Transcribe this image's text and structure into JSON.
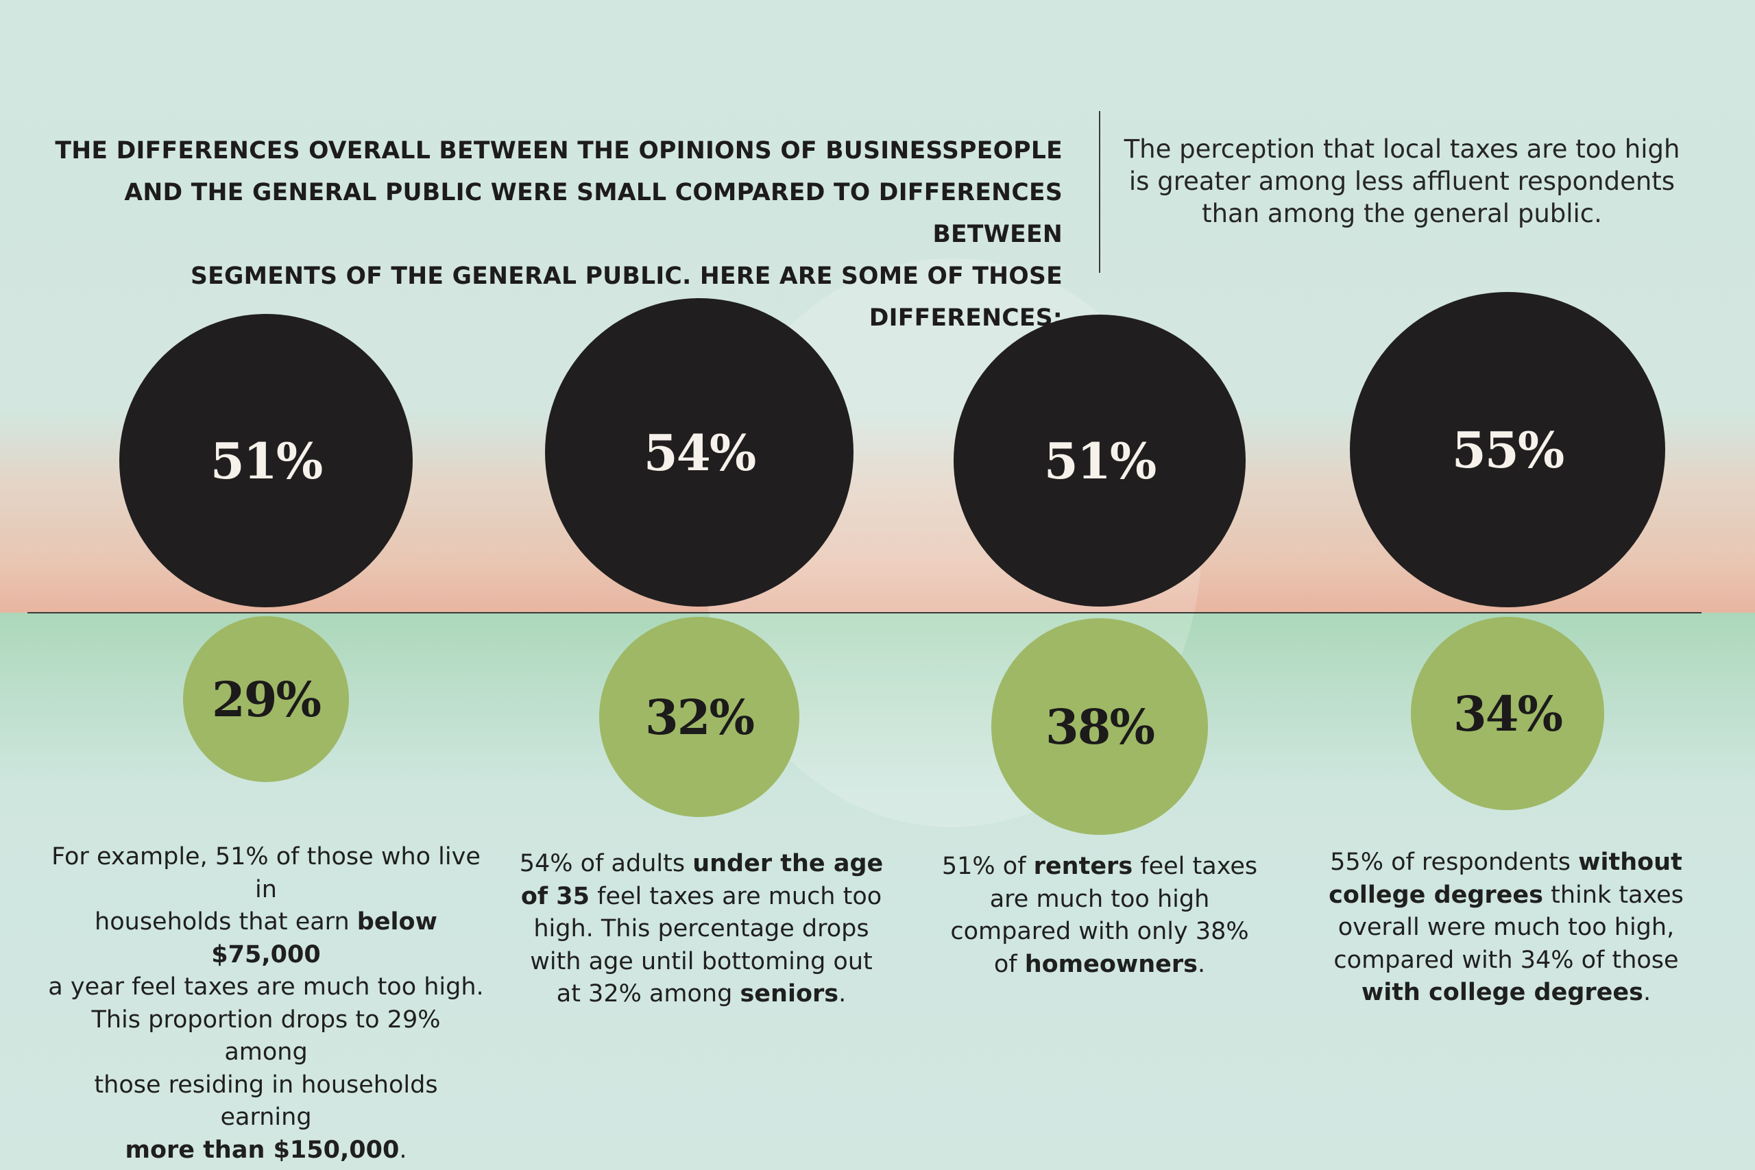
{
  "headline": {
    "lines": [
      "THE DIFFERENCES OVERALL BETWEEN THE OPINIONS OF BUSINESSPEOPLE",
      "AND THE GENERAL PUBLIC WERE SMALL COMPARED TO DIFFERENCES BETWEEN",
      "SEGMENTS OF THE GENERAL PUBLIC. HERE ARE SOME OF THOSE DIFFERENCES:"
    ]
  },
  "intro": {
    "lines": [
      "The perception that local taxes are too high",
      "is greater among less affluent respondents",
      "than among the general public."
    ]
  },
  "colors": {
    "upper_dot": "#211e1f",
    "lower_dot": "#9eb866",
    "upper_text": "#f6f1ea",
    "lower_text": "#1c1a1a"
  },
  "chart_data": {
    "type": "bubble",
    "unit": "%",
    "groups": [
      {
        "upper": {
          "value": 51,
          "label": "51%"
        },
        "lower": {
          "value": 29,
          "label": "29%"
        },
        "caption": [
          [
            {
              "t": "For example, 51% of those who live in"
            }
          ],
          [
            {
              "t": "households that earn "
            },
            {
              "t": "below $75,000",
              "b": true
            }
          ],
          [
            {
              "t": "a year feel taxes are much too high."
            }
          ],
          [
            {
              "t": "This proportion drops to 29% among"
            }
          ],
          [
            {
              "t": "those residing in households earning"
            }
          ],
          [
            {
              "t": "more than $150,000",
              "b": true
            },
            {
              "t": "."
            }
          ]
        ]
      },
      {
        "upper": {
          "value": 54,
          "label": "54%"
        },
        "lower": {
          "value": 32,
          "label": "32%"
        },
        "caption": [
          [
            {
              "t": "54% of adults "
            },
            {
              "t": "under the age",
              "b": true
            }
          ],
          [
            {
              "t": "of 35",
              "b": true
            },
            {
              "t": " feel taxes are much too"
            }
          ],
          [
            {
              "t": "high. This percentage drops"
            }
          ],
          [
            {
              "t": "with age until bottoming out"
            }
          ],
          [
            {
              "t": "at 32% among "
            },
            {
              "t": "seniors",
              "b": true
            },
            {
              "t": "."
            }
          ]
        ]
      },
      {
        "upper": {
          "value": 51,
          "label": "51%"
        },
        "lower": {
          "value": 38,
          "label": "38%"
        },
        "caption": [
          [
            {
              "t": "51% of "
            },
            {
              "t": "renters",
              "b": true
            },
            {
              "t": " feel taxes"
            }
          ],
          [
            {
              "t": "are much too high"
            }
          ],
          [
            {
              "t": "compared with only 38%"
            }
          ],
          [
            {
              "t": "of "
            },
            {
              "t": "homeowners",
              "b": true
            },
            {
              "t": "."
            }
          ]
        ]
      },
      {
        "upper": {
          "value": 55,
          "label": "55%"
        },
        "lower": {
          "value": 34,
          "label": "34%"
        },
        "caption": [
          [
            {
              "t": "55% of respondents "
            },
            {
              "t": "without",
              "b": true
            }
          ],
          [
            {
              "t": "college degrees",
              "b": true
            },
            {
              "t": " think taxes"
            }
          ],
          [
            {
              "t": "overall were much too high,"
            }
          ],
          [
            {
              "t": "compared with 34% of those"
            }
          ],
          [
            {
              "t": "with college degrees",
              "b": true
            },
            {
              "t": "."
            }
          ]
        ]
      }
    ]
  }
}
